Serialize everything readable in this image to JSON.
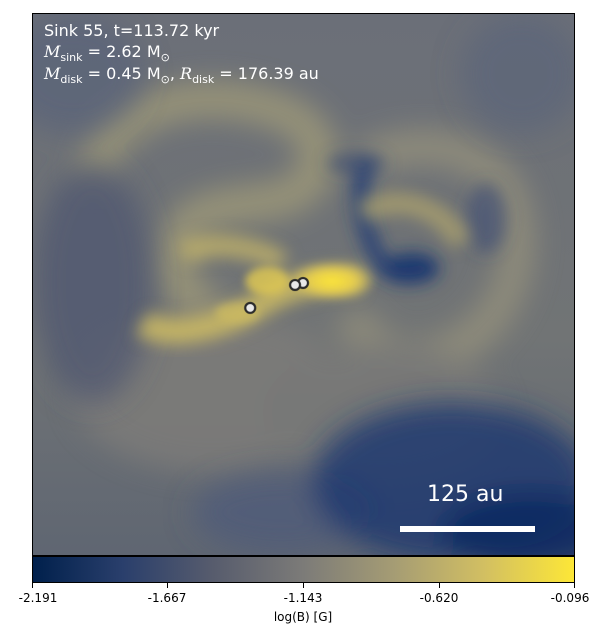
{
  "header": {
    "title_line": "Sink 55, t=113.72 kyr",
    "msink_symbol": "M",
    "msink_sub": "sink",
    "msink_value": " = 2.62 M",
    "msink_unit_sub": "⊙",
    "mdisk_symbol": "M",
    "mdisk_sub": "disk",
    "mdisk_value": " = 0.45 M",
    "mdisk_unit_sub": "⊙",
    "rdisk_sep": ", ",
    "rdisk_symbol": "R",
    "rdisk_sub": "disk",
    "rdisk_value": " = 176.39 au"
  },
  "scalebar": {
    "label": "125 au"
  },
  "colorbar": {
    "label": "log(B) [G]",
    "ticks": [
      "-2.191",
      "-1.667",
      "-1.143",
      "-0.620",
      "-0.096"
    ],
    "colormap": "cividis",
    "colors": [
      "#00204c",
      "#2a3f6c",
      "#575c6d",
      "#7c7b78",
      "#a59c74",
      "#d2bf62",
      "#fde737"
    ]
  },
  "markers": {
    "count": 3,
    "fill": "#e8e8e8",
    "stroke": "#2b2b2b"
  }
}
